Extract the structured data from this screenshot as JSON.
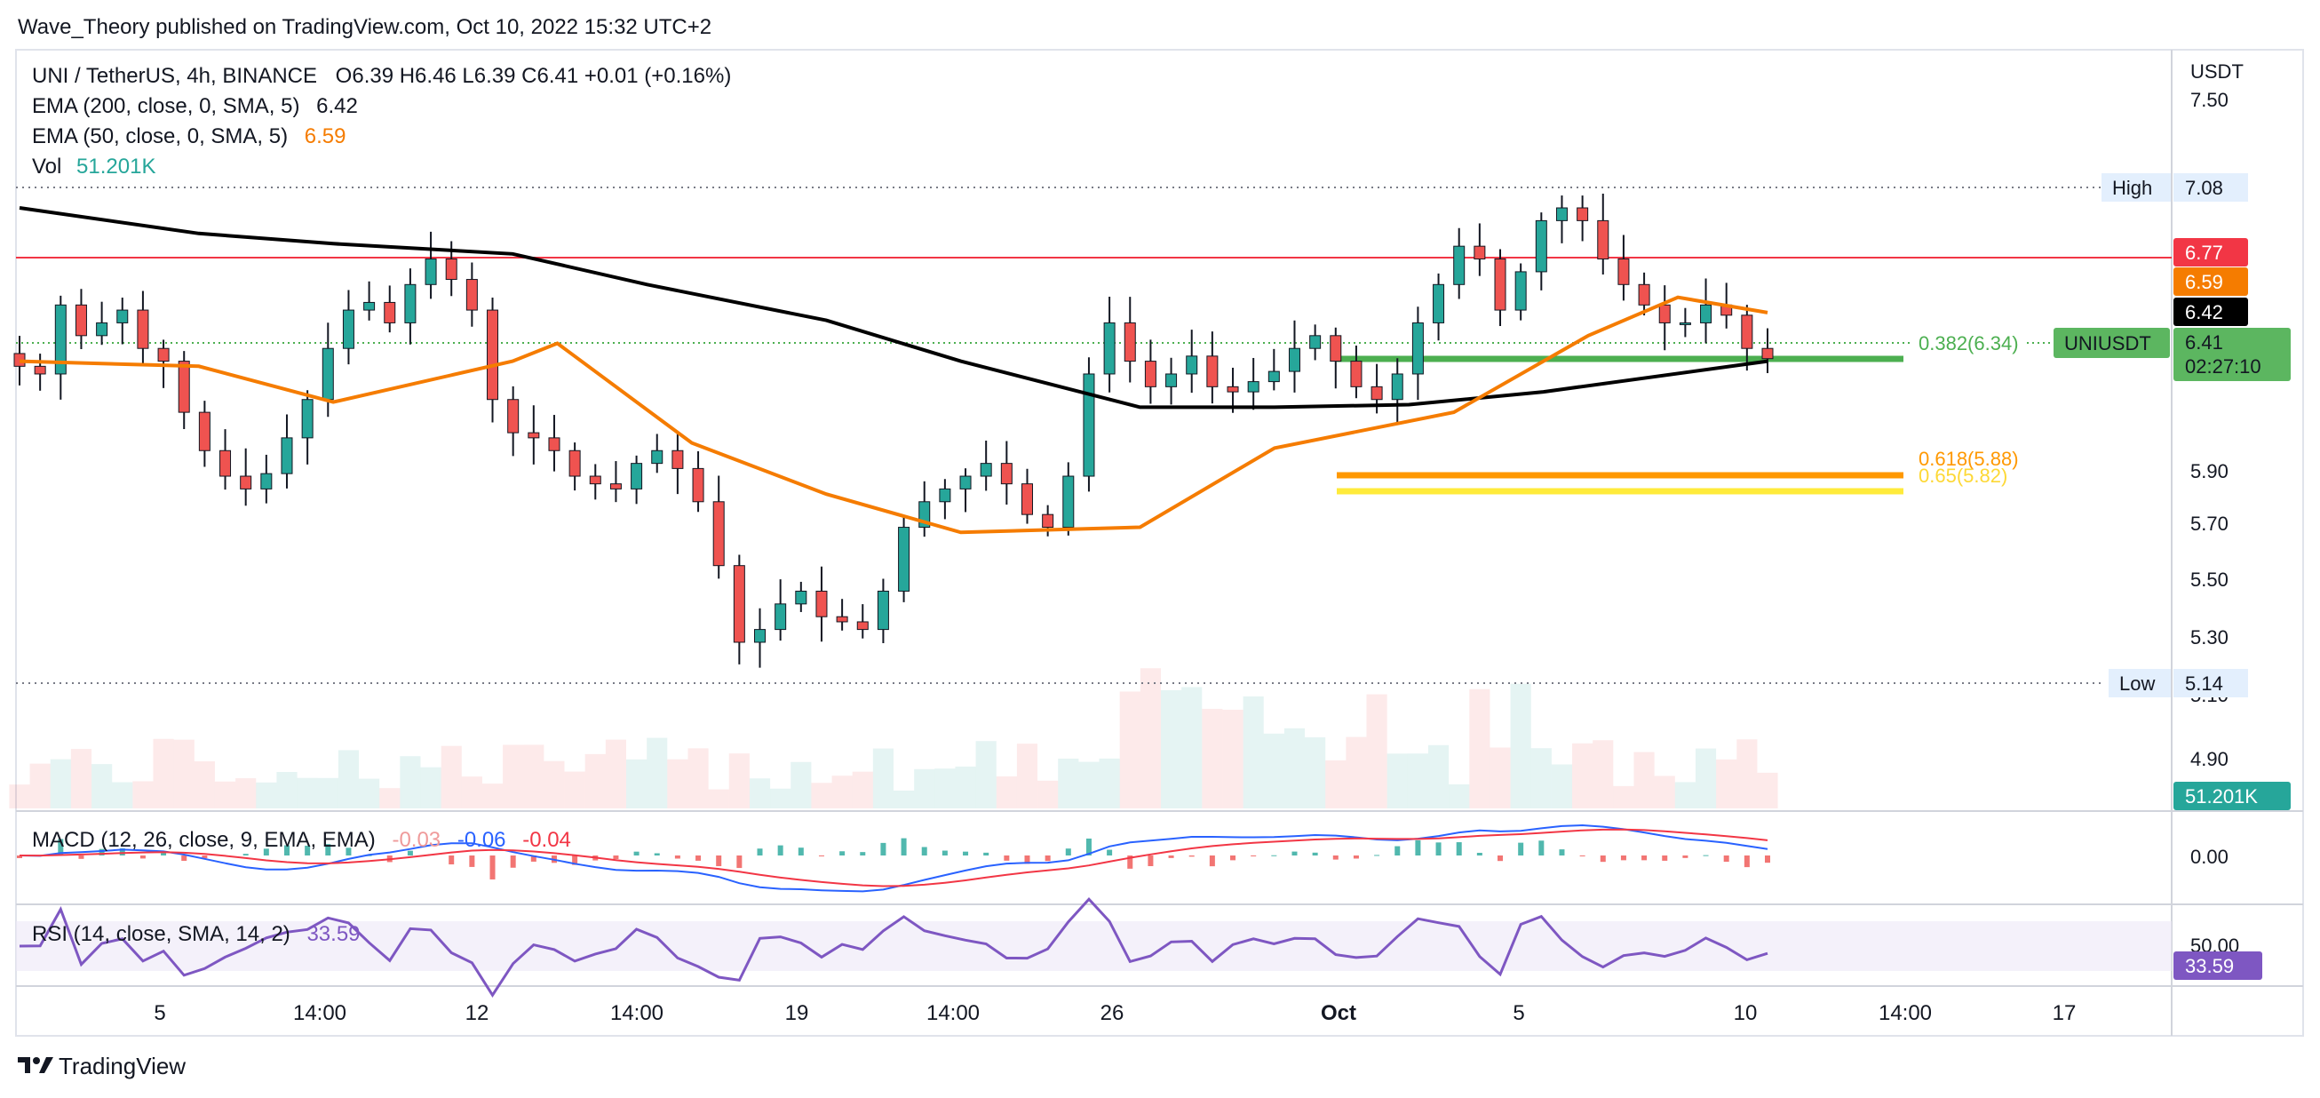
{
  "header": {
    "publish_line": "Wave_Theory published on TradingView.com, Oct 10, 2022 15:32 UTC+2"
  },
  "footer": {
    "brand": "TradingView"
  },
  "legend": {
    "symbol": "UNI / TetherUS, 4h, BINANCE",
    "ohlc": "O6.39  H6.46  L6.39  C6.41  +0.01 (+0.16%)",
    "ema200_label": "EMA (200, close, 0, SMA, 5)",
    "ema200_value": "6.42",
    "ema50_label": "EMA (50, close, 0, SMA, 5)",
    "ema50_value": "6.59",
    "vol_label": "Vol",
    "vol_value": "51.201K"
  },
  "price_axis": {
    "currency": "USDT",
    "ticks": [
      "7.50",
      "5.90",
      "5.70",
      "5.50",
      "5.30",
      "5.10",
      "4.90"
    ],
    "high_label": "High",
    "high_value": "7.08",
    "low_label": "Low",
    "low_value": "5.14",
    "badges": {
      "resistance": "6.77",
      "ema50": "6.59",
      "ema200": "6.42",
      "last_symbol": "UNIUSDT",
      "last_price": "6.41",
      "countdown": "02:27:10",
      "volume": "51.201K"
    }
  },
  "fib_labels": {
    "f382": "0.382(6.34)",
    "f618": "0.618(5.88)",
    "f65": "0.65(5.82)"
  },
  "macd": {
    "label": "MACD (12, 26, close, 9, EMA, EMA)",
    "v1": "-0.03",
    "v2": "-0.06",
    "v3": "-0.04",
    "tick": "0.00"
  },
  "rsi": {
    "label": "RSI (14, close, SMA, 14, 2)",
    "value": "33.59",
    "tick": "50.00"
  },
  "time_axis": [
    "5",
    "14:00",
    "12",
    "14:00",
    "19",
    "14:00",
    "26",
    "Oct",
    "5",
    "10",
    "14:00",
    "17"
  ],
  "colors": {
    "up": "#26a69a",
    "down": "#ef5350",
    "ema200": "#000000",
    "ema50": "#f57c00",
    "resistance": "#f23645",
    "support": "#4caf50",
    "fib618": "#ff9800",
    "fib65": "#ffeb3b",
    "macd_line": "#2962ff",
    "signal_line": "#f23645",
    "rsi": "#7e57c2"
  },
  "chart_data": {
    "type": "candlestick",
    "symbol": "UNI / TetherUS",
    "interval": "4h",
    "exchange": "BINANCE",
    "y_range": [
      4.8,
      7.6
    ],
    "horizontal_levels": [
      {
        "name": "High",
        "value": 7.08
      },
      {
        "name": "resistance",
        "value": 6.77
      },
      {
        "name": "fib 0.382",
        "value": 6.34
      },
      {
        "name": "support",
        "value": 6.27
      },
      {
        "name": "fib 0.618",
        "value": 5.88
      },
      {
        "name": "fib 0.65",
        "value": 5.82
      },
      {
        "name": "Low",
        "value": 5.14
      }
    ],
    "ema200_path": [
      {
        "x": "Sep 1",
        "y": 7.0
      },
      {
        "x": "Sep 5",
        "y": 6.9
      },
      {
        "x": "Sep 8",
        "y": 6.86
      },
      {
        "x": "Sep 12",
        "y": 6.82
      },
      {
        "x": "Sep 15",
        "y": 6.7
      },
      {
        "x": "Sep 19",
        "y": 6.56
      },
      {
        "x": "Sep 22",
        "y": 6.4
      },
      {
        "x": "Sep 26",
        "y": 6.22
      },
      {
        "x": "Sep 29",
        "y": 6.22
      },
      {
        "x": "Oct 2",
        "y": 6.23
      },
      {
        "x": "Oct 5",
        "y": 6.28
      },
      {
        "x": "Oct 10",
        "y": 6.4
      }
    ],
    "ema50_path": [
      {
        "x": "Sep 1",
        "y": 6.4
      },
      {
        "x": "Sep 5",
        "y": 6.38
      },
      {
        "x": "Sep 8",
        "y": 6.24
      },
      {
        "x": "Sep 12",
        "y": 6.4
      },
      {
        "x": "Sep 13",
        "y": 6.47
      },
      {
        "x": "Sep 16",
        "y": 6.08
      },
      {
        "x": "Sep 19",
        "y": 5.88
      },
      {
        "x": "Sep 22",
        "y": 5.73
      },
      {
        "x": "Sep 26",
        "y": 5.75
      },
      {
        "x": "Sep 29",
        "y": 6.06
      },
      {
        "x": "Oct 3",
        "y": 6.2
      },
      {
        "x": "Oct 6",
        "y": 6.5
      },
      {
        "x": "Oct 8",
        "y": 6.65
      },
      {
        "x": "Oct 10",
        "y": 6.59
      }
    ],
    "candle_closes": [
      6.38,
      6.35,
      6.62,
      6.5,
      6.55,
      6.6,
      6.45,
      6.4,
      6.2,
      6.05,
      5.95,
      5.9,
      5.96,
      6.1,
      6.25,
      6.45,
      6.6,
      6.63,
      6.55,
      6.7,
      6.8,
      6.72,
      6.6,
      6.25,
      6.12,
      6.1,
      6.05,
      5.95,
      5.92,
      5.9,
      6.0,
      6.05,
      5.98,
      5.85,
      5.6,
      5.3,
      5.35,
      5.45,
      5.5,
      5.4,
      5.38,
      5.35,
      5.5,
      5.75,
      5.85,
      5.9,
      5.95,
      6.0,
      5.92,
      5.8,
      5.75,
      5.95,
      6.35,
      6.55,
      6.4,
      6.3,
      6.35,
      6.42,
      6.3,
      6.28,
      6.32,
      6.36,
      6.45,
      6.5,
      6.4,
      6.3,
      6.25,
      6.35,
      6.55,
      6.7,
      6.85,
      6.8,
      6.6,
      6.75,
      6.95,
      7.0,
      6.95,
      6.8,
      6.7,
      6.62,
      6.55,
      6.55,
      6.62,
      6.58,
      6.45,
      6.41
    ],
    "series": [
      {
        "name": "EMA (200, close, 0, SMA, 5)",
        "last": 6.42
      },
      {
        "name": "EMA (50, close, 0, SMA, 5)",
        "last": 6.59
      },
      {
        "name": "Vol",
        "last": "51.201K"
      }
    ],
    "x_ticks": [
      "5",
      "14:00",
      "12",
      "14:00",
      "19",
      "14:00",
      "26",
      "Oct",
      "5",
      "10",
      "14:00",
      "17"
    ],
    "y_ticks": [
      7.5,
      5.9,
      5.7,
      5.5,
      5.3,
      5.1,
      4.9
    ]
  }
}
